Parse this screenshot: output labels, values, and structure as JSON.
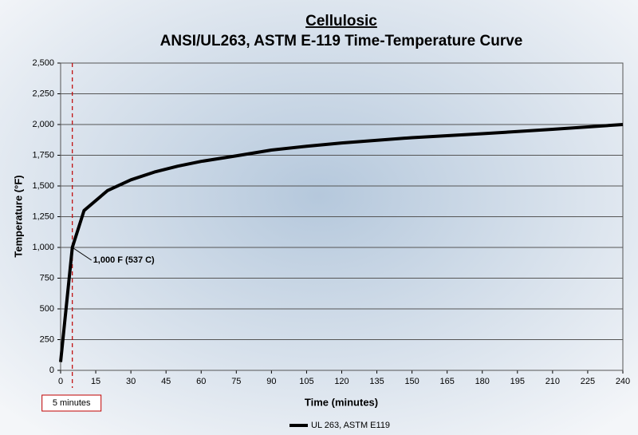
{
  "chart_data": {
    "type": "line",
    "title": "Cellulosic",
    "subtitle": "ANSI/UL263, ASTM E-119 Time-Temperature Curve",
    "x_label": "Time (minutes)",
    "y_label": "Temperature (°F)",
    "series": [
      {
        "name": "UL 263, ASTM E119",
        "color": "#000000",
        "x": [
          0,
          5,
          10,
          20,
          30,
          40,
          50,
          60,
          75,
          90,
          105,
          120,
          150,
          180,
          210,
          240
        ],
        "values": [
          68,
          1000,
          1300,
          1462,
          1550,
          1613,
          1661,
          1700,
          1745,
          1792,
          1823,
          1850,
          1893,
          1925,
          1961,
          2000
        ]
      }
    ],
    "xlim": [
      0,
      240
    ],
    "xticks": [
      0,
      15,
      30,
      45,
      60,
      75,
      90,
      105,
      120,
      135,
      150,
      165,
      180,
      195,
      210,
      225,
      240
    ],
    "ylim": [
      0,
      2500
    ],
    "yticks": [
      0,
      250,
      500,
      750,
      {
        "value": 1000,
        "label": "1,000"
      },
      {
        "value": 1250,
        "label": "1,250"
      },
      {
        "value": 1500,
        "label": "1,500"
      },
      {
        "value": 1750,
        "label": "1,750"
      },
      {
        "value": 2000,
        "label": "2,000"
      },
      {
        "value": 2250,
        "label": "2,250"
      },
      {
        "value": 2500,
        "label": "2,500"
      }
    ],
    "grid": true,
    "annotation": {
      "text": "1,000 F (537 C)",
      "x": 5,
      "y": 1000
    },
    "reference_line": {
      "x": 5,
      "label": "5 minutes",
      "color": "#c00000"
    }
  }
}
